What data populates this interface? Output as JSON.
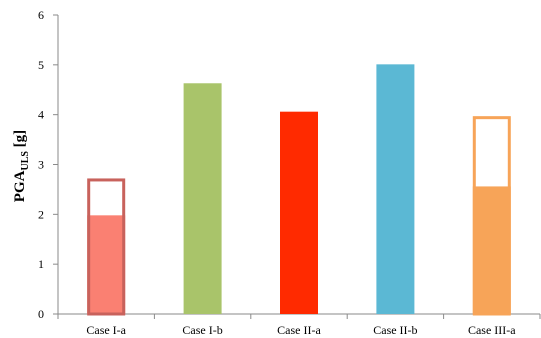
{
  "chart_data": {
    "type": "bar",
    "categories": [
      "Case I-a",
      "Case I-b",
      "Case II-a",
      "Case II-b",
      "Case III-a"
    ],
    "series": [
      {
        "values": [
          1.98,
          4.63,
          4.06,
          5.01,
          2.56
        ]
      },
      {
        "values": [
          2.69,
          null,
          null,
          null,
          3.94
        ]
      }
    ],
    "colors": {
      "Case I-a": "#fa8072",
      "Case I-a-outline": "#c8625c",
      "Case I-b": "#a9c46a",
      "Case II-a": "#ff2a00",
      "Case II-b": "#5bb8d4",
      "Case III-a": "#f7a458"
    },
    "ylabel": {
      "main": "PGA",
      "sub": "ULS",
      "unit": " [g]"
    },
    "ylim": [
      0,
      6
    ],
    "yticks": [
      "0",
      "1",
      "2",
      "3",
      "4",
      "5",
      "6"
    ],
    "grid": false,
    "legend": "none"
  }
}
